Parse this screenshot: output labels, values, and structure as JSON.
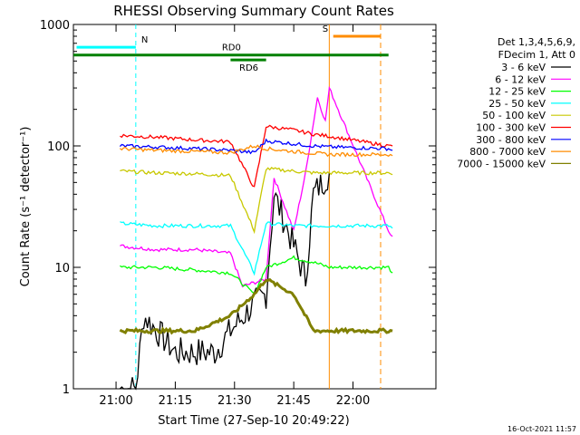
{
  "chart_data": {
    "type": "line",
    "title": "RHESSI Observing Summary Count Rates",
    "xlabel": "Start Time (27-Sep-10 20:49:22)",
    "ylabel": "Count Rate (s⁻¹ detector⁻¹)",
    "yscale": "log",
    "ylim": [
      1,
      1000
    ],
    "xlim_minutes": [
      20.82,
      22.35
    ],
    "x_ticks": [
      "21:00",
      "21:15",
      "21:30",
      "21:45",
      "22:00"
    ],
    "y_ticks": [
      "1",
      "10",
      "100",
      "1000"
    ],
    "legend_header": [
      "Det 1,3,4,5,6,9,",
      "FDecim 1, Att 0"
    ],
    "timestamp": "16-Oct-2021 11:57",
    "series": [
      {
        "name": "3 - 6 keV",
        "color": "#000000",
        "x": [
          "21:01",
          "21:05",
          "21:07",
          "21:15",
          "21:25",
          "21:29",
          "21:35",
          "21:38",
          "21:40",
          "21:45",
          "21:48",
          "21:50",
          "21:54"
        ],
        "values": [
          1,
          1,
          4,
          2,
          2,
          3,
          5,
          6,
          40,
          15,
          8,
          40,
          60
        ]
      },
      {
        "name": "6 - 12 keV",
        "color": "#ff00ff",
        "x": [
          "21:01",
          "21:10",
          "21:20",
          "21:29",
          "21:32",
          "21:38",
          "21:40",
          "21:45",
          "21:48",
          "21:51",
          "21:53",
          "21:54",
          "22:09",
          "22:10"
        ],
        "values": [
          15,
          14,
          14,
          13,
          7,
          8,
          55,
          20,
          60,
          250,
          160,
          300,
          20,
          18
        ]
      },
      {
        "name": "12 - 25 keV",
        "color": "#00ff00",
        "x": [
          "21:01",
          "21:10",
          "21:20",
          "21:29",
          "21:35",
          "21:38",
          "21:45",
          "21:50",
          "21:54",
          "22:09",
          "22:10"
        ],
        "values": [
          10,
          10,
          9.5,
          9,
          6,
          10,
          12,
          11,
          10,
          10,
          9
        ]
      },
      {
        "name": "25 - 50 keV",
        "color": "#00ffff",
        "x": [
          "21:01",
          "21:10",
          "21:20",
          "21:29",
          "21:35",
          "21:38",
          "21:45",
          "21:50",
          "21:54",
          "22:09",
          "22:10"
        ],
        "values": [
          23,
          22,
          22,
          22,
          9,
          23,
          22,
          22,
          22,
          22,
          21
        ]
      },
      {
        "name": "50 - 100 keV",
        "color": "#c8c800",
        "x": [
          "21:01",
          "21:10",
          "21:20",
          "21:29",
          "21:35",
          "21:38",
          "21:45",
          "21:50",
          "21:54",
          "22:09",
          "22:10"
        ],
        "values": [
          62,
          60,
          59,
          57,
          20,
          65,
          62,
          60,
          60,
          60,
          58
        ]
      },
      {
        "name": "100 - 300 keV",
        "color": "#ff0000",
        "x": [
          "21:01",
          "21:10",
          "21:20",
          "21:29",
          "21:35",
          "21:38",
          "21:45",
          "21:50",
          "21:54",
          "22:09",
          "22:10"
        ],
        "values": [
          122,
          118,
          112,
          108,
          45,
          145,
          135,
          125,
          120,
          100,
          100
        ]
      },
      {
        "name": "300 - 800 keV",
        "color": "#0000ff",
        "x": [
          "21:01",
          "21:10",
          "21:20",
          "21:29",
          "21:35",
          "21:38",
          "21:45",
          "21:50",
          "21:54",
          "22:09",
          "22:10"
        ],
        "values": [
          100,
          98,
          95,
          92,
          88,
          110,
          104,
          100,
          98,
          95,
          92
        ]
      },
      {
        "name": "800 - 7000 keV",
        "color": "#ff8c00",
        "x": [
          "21:01",
          "21:10",
          "21:20",
          "21:29",
          "21:35",
          "21:38",
          "21:45",
          "21:50",
          "21:54",
          "22:09",
          "22:10"
        ],
        "values": [
          95,
          92,
          90,
          88,
          100,
          95,
          90,
          87,
          85,
          85,
          83
        ]
      },
      {
        "name": "7000 - 15000 keV",
        "color": "#808000",
        "x": [
          "21:01",
          "21:10",
          "21:20",
          "21:29",
          "21:35",
          "21:38",
          "21:45",
          "21:50",
          "21:54",
          "22:09",
          "22:10"
        ],
        "values": [
          3,
          3,
          3,
          4,
          6,
          8,
          6,
          3,
          3,
          3,
          3
        ]
      }
    ],
    "annotations": [
      {
        "label": "N",
        "color": "#00ffff",
        "bar_x": [
          "20:50",
          "21:05"
        ],
        "bar_y": 650,
        "marker_x": "21:05"
      },
      {
        "label": "S",
        "color": "#ff8c00",
        "bar_x": [
          "21:55",
          "22:07"
        ],
        "bar_y": 800,
        "marker_x": "21:54",
        "marker_x2": "22:07"
      },
      {
        "label": "RD0",
        "color": "#008000",
        "bar_x": [
          "20:49",
          "22:09"
        ],
        "bar_y": 560
      },
      {
        "label": "RD6",
        "color": "#008000",
        "bar_x": [
          "21:29",
          "21:38"
        ],
        "bar_y": 510
      }
    ]
  }
}
